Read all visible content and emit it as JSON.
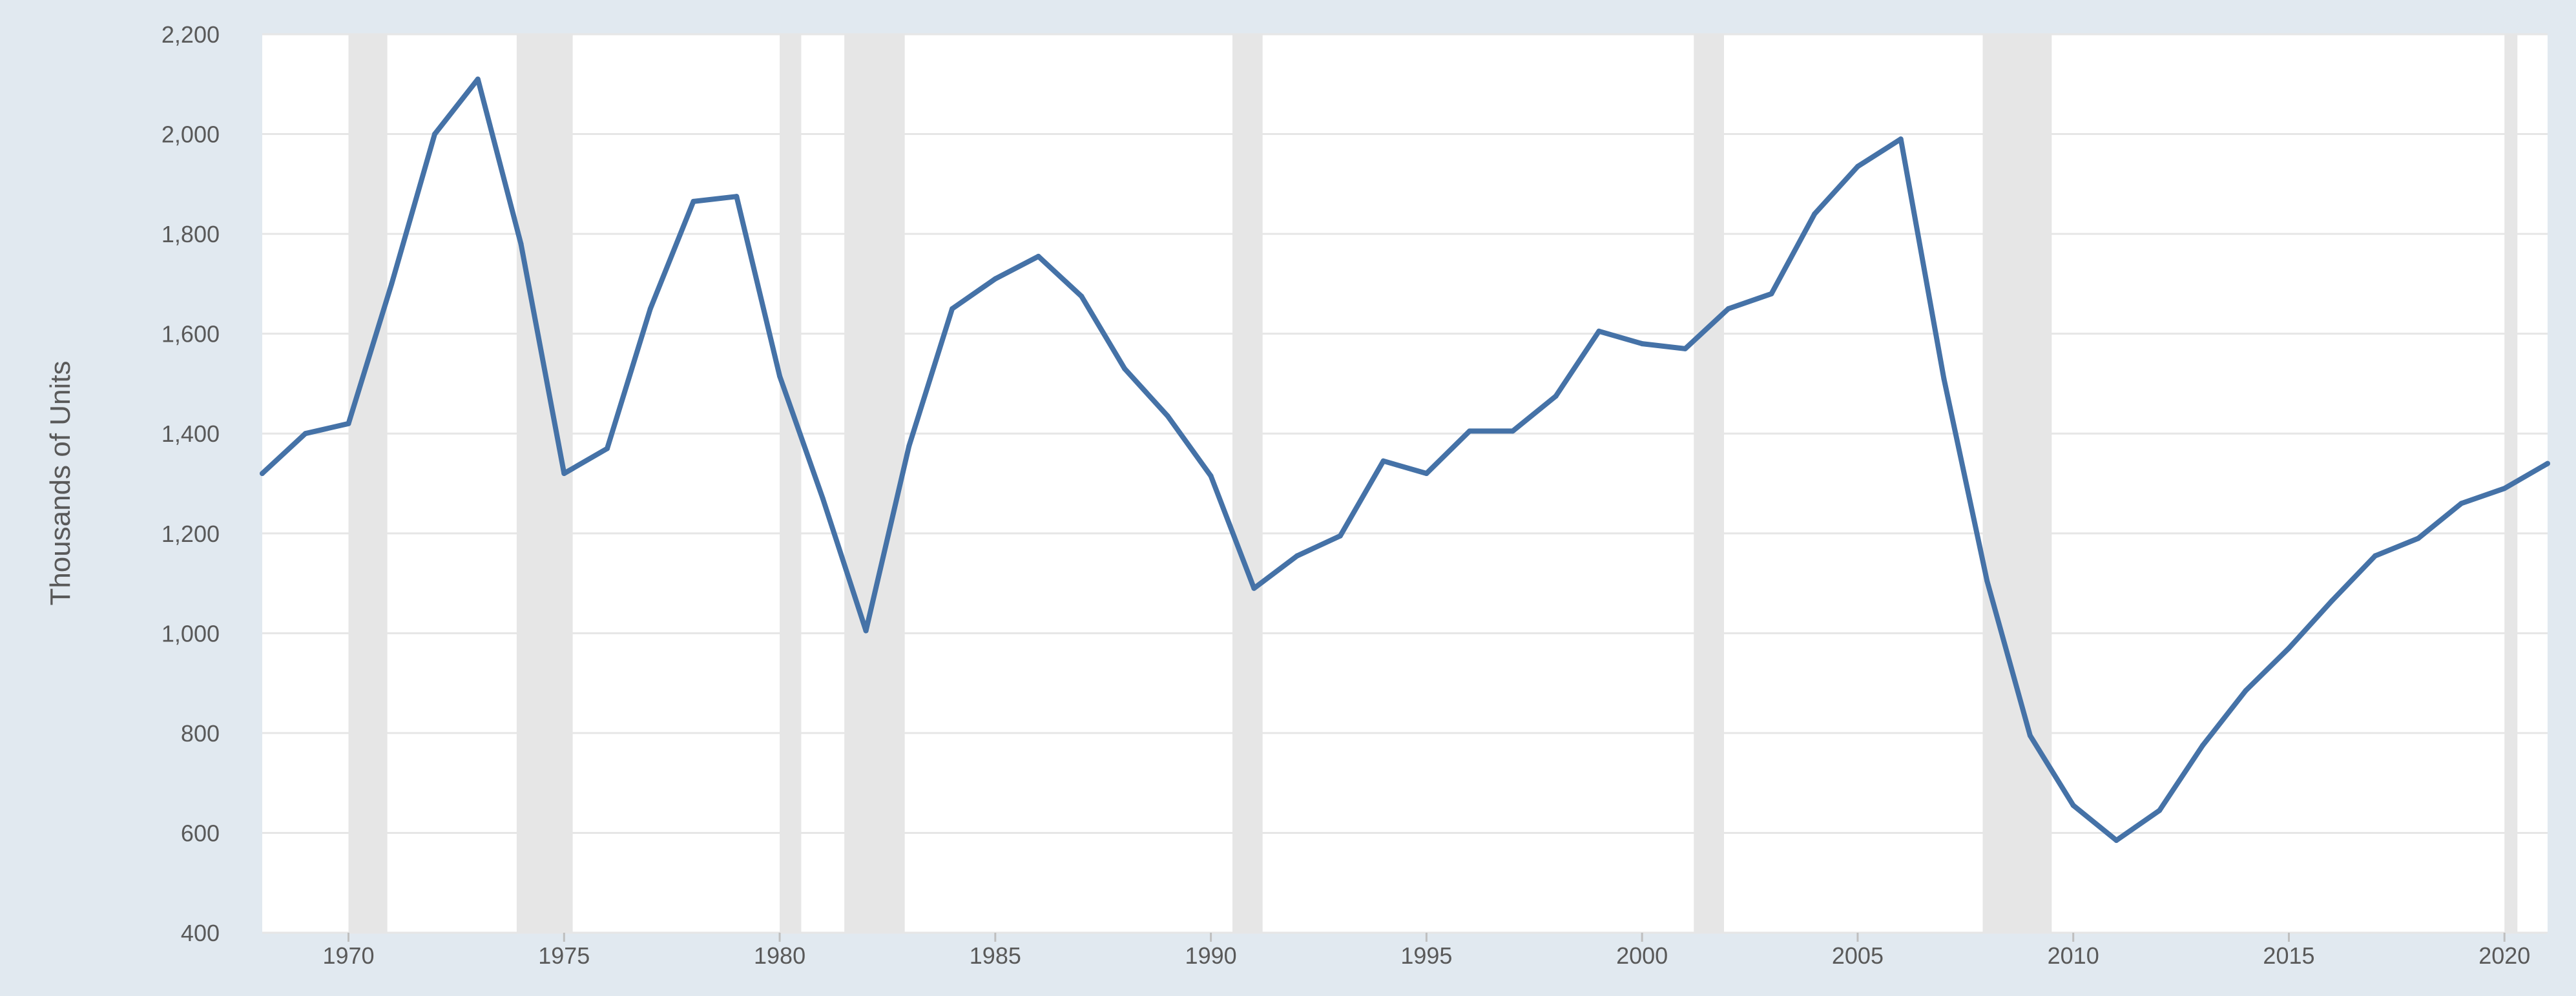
{
  "chart_data": {
    "type": "line",
    "title": "",
    "xlabel": "",
    "ylabel": "Thousands of Units",
    "xlim": [
      1968,
      2021
    ],
    "ylim": [
      400,
      2200
    ],
    "grid": true,
    "legend": "none",
    "line_color": "#4572a7",
    "recession_color": "#e6e6e6",
    "x_ticks": [
      1970,
      1975,
      1980,
      1985,
      1990,
      1995,
      2000,
      2005,
      2010,
      2015,
      2020
    ],
    "x_tick_labels": [
      "1970",
      "1975",
      "1980",
      "1985",
      "1990",
      "1995",
      "2000",
      "2005",
      "2010",
      "2015",
      "2020"
    ],
    "y_ticks": [
      400,
      600,
      800,
      1000,
      1200,
      1400,
      1600,
      1800,
      2000,
      2200
    ],
    "y_tick_labels": [
      "400",
      "600",
      "800",
      "1,000",
      "1,200",
      "1,400",
      "1,600",
      "1,800",
      "2,000",
      "2,200"
    ],
    "recessions": [
      [
        1970.0,
        1970.9
      ],
      [
        1973.9,
        1975.2
      ],
      [
        1980.0,
        1980.5
      ],
      [
        1981.5,
        1982.9
      ],
      [
        1990.5,
        1991.2
      ],
      [
        2001.2,
        2001.9
      ],
      [
        2007.9,
        2009.5
      ],
      [
        2020.0,
        2020.3
      ]
    ],
    "series": [
      {
        "x": [
          1968,
          1969,
          1970,
          1971,
          1972,
          1973,
          1974,
          1975,
          1976,
          1977,
          1978,
          1979,
          1980,
          1981,
          1982,
          1983,
          1984,
          1985,
          1986,
          1987,
          1988,
          1989,
          1990,
          1991,
          1992,
          1993,
          1994,
          1995,
          1996,
          1997,
          1998,
          1999,
          2000,
          2001,
          2002,
          2003,
          2004,
          2005,
          2006,
          2007,
          2008,
          2009,
          2010,
          2011,
          2012,
          2013,
          2014,
          2015,
          2016,
          2017,
          2018,
          2019,
          2020,
          2021
        ],
        "values": [
          1320,
          1400,
          1420,
          1700,
          2000,
          2110,
          1780,
          1320,
          1370,
          1650,
          1865,
          1875,
          1515,
          1270,
          1005,
          1375,
          1650,
          1710,
          1755,
          1675,
          1530,
          1435,
          1315,
          1090,
          1155,
          1195,
          1345,
          1320,
          1405,
          1405,
          1475,
          1605,
          1580,
          1570,
          1650,
          1680,
          1840,
          1935,
          1990,
          1510,
          1105,
          795,
          655,
          585,
          645,
          775,
          885,
          970,
          1065,
          1155,
          1190,
          1260,
          1290,
          1340
        ]
      }
    ]
  }
}
